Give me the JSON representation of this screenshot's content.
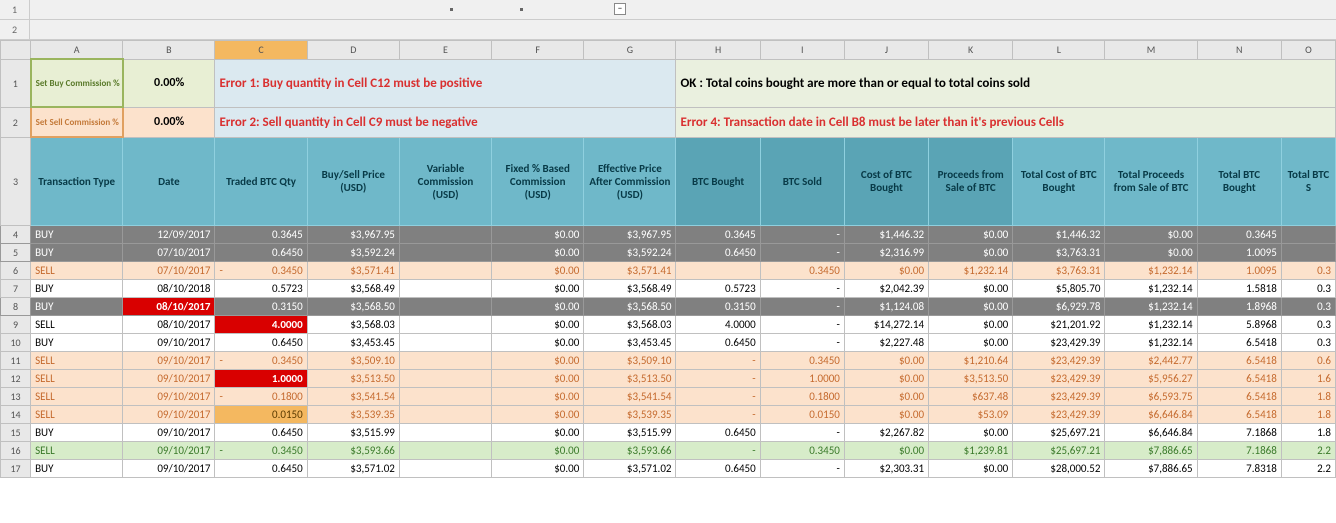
{
  "outline": {
    "levels": [
      "1",
      "2"
    ],
    "collapse_glyph": "−"
  },
  "columns": {
    "letters": [
      "A",
      "B",
      "C",
      "D",
      "E",
      "F",
      "G",
      "H",
      "I",
      "J",
      "K",
      "L",
      "M",
      "N",
      "O"
    ],
    "widths": [
      92,
      92,
      92,
      92,
      92,
      92,
      92,
      84,
      84,
      84,
      84,
      92,
      92,
      84,
      54
    ],
    "selected_index": 2
  },
  "row_numbers": [
    "1",
    "2",
    "3",
    "4",
    "5",
    "6",
    "7",
    "8",
    "9",
    "10",
    "11",
    "12",
    "13",
    "14",
    "15",
    "16",
    "17"
  ],
  "commission": {
    "buy_label": "Set Buy Commission %",
    "buy_value": "0.00%",
    "sell_label": "Set Sell Commission %",
    "sell_value": "0.00%"
  },
  "messages": {
    "err1": "Error 1: Buy quantity in Cell C12 must be positive",
    "ok": "OK : Total coins bought are more than or equal to total coins sold",
    "err2": "Error 2: Sell quantity in Cell C9 must be negative",
    "err4": "Error 4: Transaction date in Cell B8 must be later than it's previous Cells"
  },
  "headers": [
    "Transaction Type",
    "Date",
    "Traded BTC Qty",
    "Buy/Sell Price (USD)",
    "Variable Commission (USD)",
    "Fixed % Based Commission (USD)",
    "Effective Price After Commission (USD)",
    "BTC Bought",
    "BTC Sold",
    "Cost of BTC Bought",
    "Proceeds from Sale of BTC",
    "Total Cost of BTC Bought",
    "Total Proceeds from Sale of BTC",
    "Total BTC Bought",
    "Total BTC S"
  ],
  "rows": [
    {
      "style": "gray",
      "type": "BUY",
      "date": "12/09/2017",
      "qty": "0.3645",
      "price": "$3,967.95",
      "varc": "",
      "fixc": "$0.00",
      "eff": "$3,967.95",
      "bought": "0.3645",
      "sold": "-",
      "cost": "$1,446.32",
      "proc": "$0.00",
      "tcost": "$1,446.32",
      "tproc": "$0.00",
      "tbought": "0.3645",
      "tsold": ""
    },
    {
      "style": "gray",
      "type": "BUY",
      "date": "07/10/2017",
      "qty": "0.6450",
      "price": "$3,592.24",
      "varc": "",
      "fixc": "$0.00",
      "eff": "$3,592.24",
      "bought": "0.6450",
      "sold": "-",
      "cost": "$2,316.99",
      "proc": "$0.00",
      "tcost": "$3,763.31",
      "tproc": "$0.00",
      "tbought": "1.0095",
      "tsold": ""
    },
    {
      "style": "peach",
      "type": "SELL",
      "date": "07/10/2017",
      "qty_prefix": "-",
      "qty": "0.3450",
      "price": "$3,571.41",
      "varc": "",
      "fixc": "$0.00",
      "eff": "$3,571.41",
      "bought": "",
      "sold": "0.3450",
      "cost": "$0.00",
      "proc": "$1,232.14",
      "tcost": "$3,763.31",
      "tproc": "$1,232.14",
      "tbought": "1.0095",
      "tsold": "0.3"
    },
    {
      "style": "white",
      "type": "BUY",
      "date": "08/10/2018",
      "qty": "0.5723",
      "price": "$3,568.49",
      "varc": "",
      "fixc": "$0.00",
      "eff": "$3,568.49",
      "bought": "0.5723",
      "sold": "-",
      "cost": "$2,042.39",
      "proc": "$0.00",
      "tcost": "$5,805.70",
      "tproc": "$1,232.14",
      "tbought": "1.5818",
      "tsold": "0.3"
    },
    {
      "style": "gray",
      "type": "BUY",
      "date": "08/10/2017",
      "date_red": true,
      "qty": "0.3150",
      "price": "$3,568.50",
      "varc": "",
      "fixc": "$0.00",
      "eff": "$3,568.50",
      "bought": "0.3150",
      "sold": "-",
      "cost": "$1,124.08",
      "proc": "$0.00",
      "tcost": "$6,929.78",
      "tproc": "$1,232.14",
      "tbought": "1.8968",
      "tsold": "0.3"
    },
    {
      "style": "white",
      "type": "SELL",
      "date": "08/10/2017",
      "qty": "4.0000",
      "qty_red": true,
      "price": "$3,568.03",
      "varc": "",
      "fixc": "$0.00",
      "eff": "$3,568.03",
      "bought": "4.0000",
      "sold": "-",
      "cost": "$14,272.14",
      "proc": "$0.00",
      "tcost": "$21,201.92",
      "tproc": "$1,232.14",
      "tbought": "5.8968",
      "tsold": "0.3"
    },
    {
      "style": "white",
      "type": "BUY",
      "date": "09/10/2017",
      "qty": "0.6450",
      "price": "$3,453.45",
      "varc": "",
      "fixc": "$0.00",
      "eff": "$3,453.45",
      "bought": "0.6450",
      "sold": "-",
      "cost": "$2,227.48",
      "proc": "$0.00",
      "tcost": "$23,429.39",
      "tproc": "$1,232.14",
      "tbought": "6.5418",
      "tsold": "0.3"
    },
    {
      "style": "peach",
      "type": "SELL",
      "date": "09/10/2017",
      "qty_prefix": "-",
      "qty": "0.3450",
      "price": "$3,509.10",
      "varc": "",
      "fixc": "$0.00",
      "eff": "$3,509.10",
      "bought": "-",
      "sold": "0.3450",
      "cost": "$0.00",
      "proc": "$1,210.64",
      "tcost": "$23,429.39",
      "tproc": "$2,442.77",
      "tbought": "6.5418",
      "tsold": "0.6"
    },
    {
      "style": "peach",
      "type": "SELL",
      "date": "09/10/2017",
      "qty_prefix": "-",
      "qty": "1.0000",
      "qty_red": true,
      "price": "$3,513.50",
      "varc": "",
      "fixc": "$0.00",
      "eff": "$3,513.50",
      "bought": "-",
      "sold": "1.0000",
      "cost": "$0.00",
      "proc": "$3,513.50",
      "tcost": "$23,429.39",
      "tproc": "$5,956.27",
      "tbought": "6.5418",
      "tsold": "1.6"
    },
    {
      "style": "peach",
      "type": "SELL",
      "date": "09/10/2017",
      "qty_prefix": "-",
      "qty": "0.1800",
      "price": "$3,541.54",
      "varc": "",
      "fixc": "$0.00",
      "eff": "$3,541.54",
      "bought": "-",
      "sold": "0.1800",
      "cost": "$0.00",
      "proc": "$637.48",
      "tcost": "$23,429.39",
      "tproc": "$6,593.75",
      "tbought": "6.5418",
      "tsold": "1.8"
    },
    {
      "style": "peach",
      "type": "SELL",
      "date": "09/10/2017",
      "qty_prefix": "-",
      "qty": "0.0150",
      "qty_orange": true,
      "price": "$3,539.35",
      "varc": "",
      "fixc": "$0.00",
      "eff": "$3,539.35",
      "bought": "-",
      "sold": "0.0150",
      "cost": "$0.00",
      "proc": "$53.09",
      "tcost": "$23,429.39",
      "tproc": "$6,646.84",
      "tbought": "6.5418",
      "tsold": "1.8"
    },
    {
      "style": "white",
      "type": "BUY",
      "date": "09/10/2017",
      "qty": "0.6450",
      "price": "$3,515.99",
      "varc": "",
      "fixc": "$0.00",
      "eff": "$3,515.99",
      "bought": "0.6450",
      "sold": "-",
      "cost": "$2,267.82",
      "proc": "$0.00",
      "tcost": "$25,697.21",
      "tproc": "$6,646.84",
      "tbought": "7.1868",
      "tsold": "1.8"
    },
    {
      "style": "green",
      "type": "SELL",
      "date": "09/10/2017",
      "qty_prefix": "-",
      "qty": "0.3450",
      "price": "$3,593.66",
      "varc": "",
      "fixc": "$0.00",
      "eff": "$3,593.66",
      "bought": "-",
      "sold": "0.3450",
      "cost": "$0.00",
      "proc": "$1,239.81",
      "tcost": "$25,697.21",
      "tproc": "$7,886.65",
      "tbought": "7.1868",
      "tsold": "2.2"
    },
    {
      "style": "white",
      "type": "BUY",
      "date": "09/10/2017",
      "qty": "0.6450",
      "price": "$3,571.02",
      "varc": "",
      "fixc": "$0.00",
      "eff": "$3,571.02",
      "bought": "0.6450",
      "sold": "-",
      "cost": "$2,303.31",
      "proc": "$0.00",
      "tcost": "$28,000.52",
      "tproc": "$7,886.65",
      "tbought": "7.8318",
      "tsold": "2.2"
    }
  ]
}
